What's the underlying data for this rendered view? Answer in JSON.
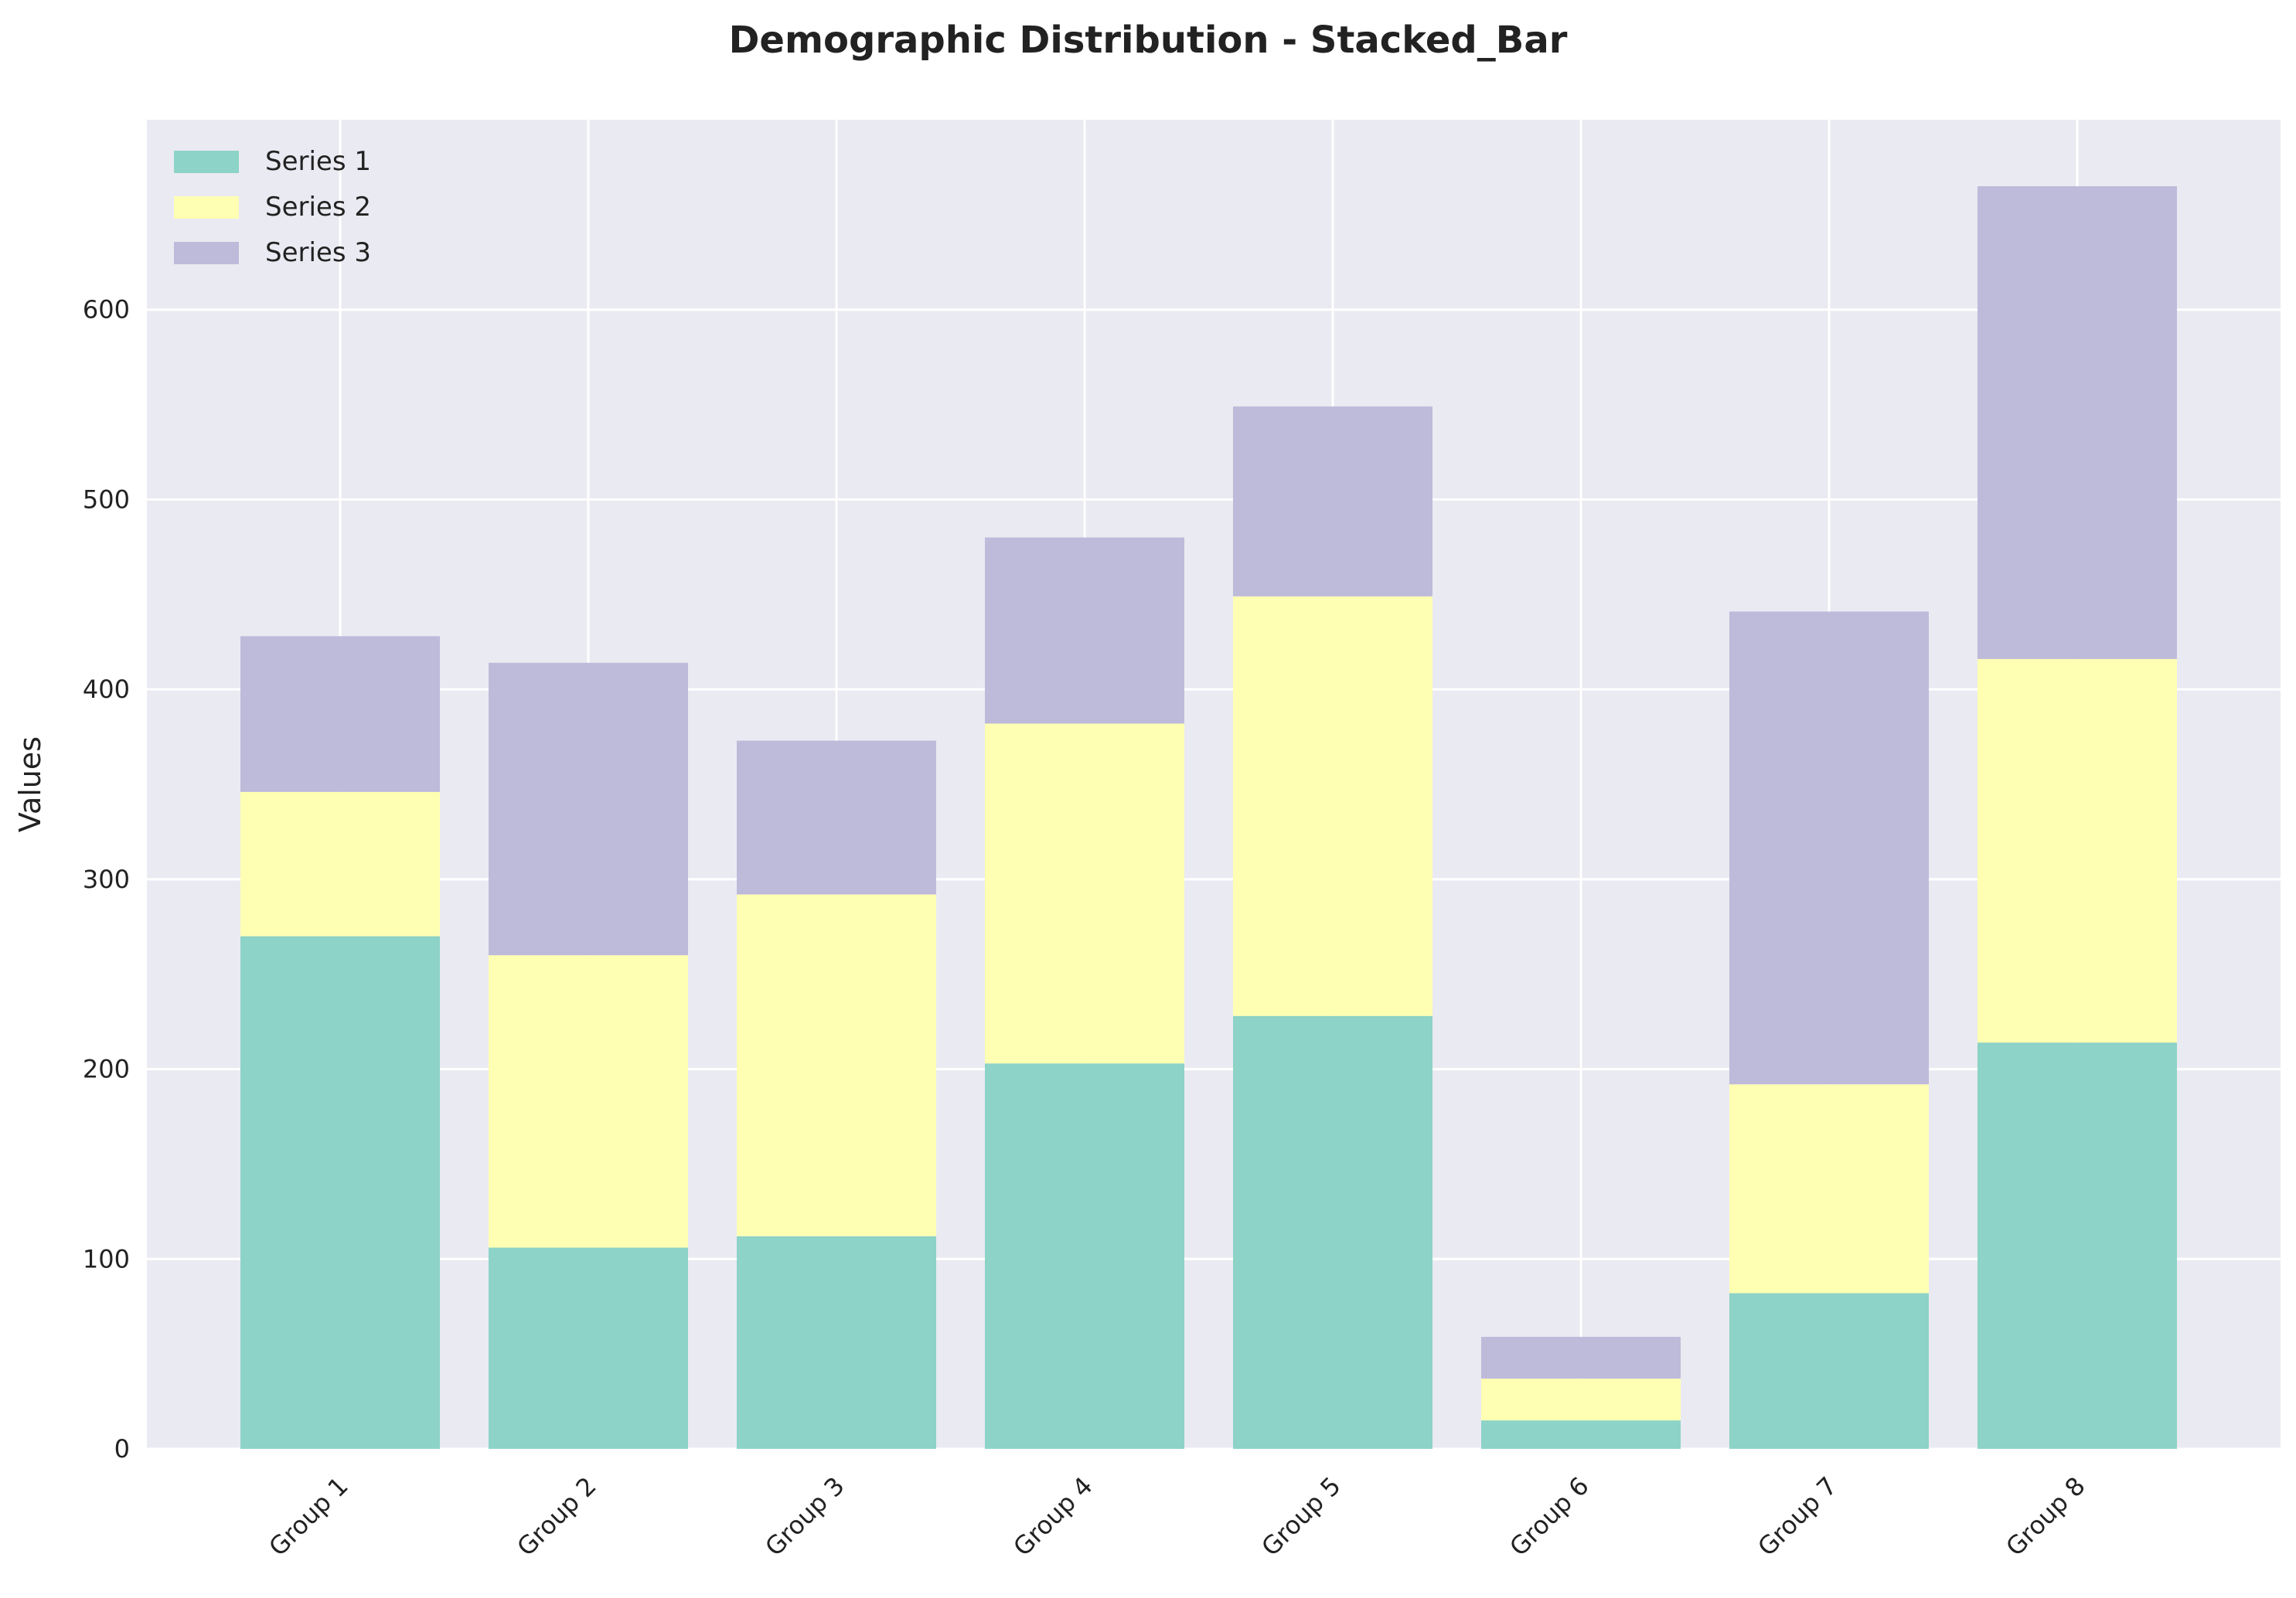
{
  "chart_data": {
    "type": "bar",
    "stacked": true,
    "title": "Demographic Distribution - Stacked_Bar",
    "xlabel": "",
    "ylabel": "Values",
    "categories": [
      "Group 1",
      "Group 2",
      "Group 3",
      "Group 4",
      "Group 5",
      "Group 6",
      "Group 7",
      "Group 8"
    ],
    "series": [
      {
        "name": "Series 1",
        "color": "#8dd3c7",
        "values": [
          270,
          106,
          112,
          203,
          228,
          15,
          82,
          214
        ]
      },
      {
        "name": "Series 2",
        "color": "#ffffb3",
        "values": [
          76,
          154,
          180,
          179,
          221,
          22,
          110,
          202
        ]
      },
      {
        "name": "Series 3",
        "color": "#bebada",
        "values": [
          82,
          154,
          81,
          98,
          100,
          22,
          249,
          249
        ]
      }
    ],
    "ylim": [
      0,
      700
    ],
    "yticks": [
      0,
      100,
      200,
      300,
      400,
      500,
      600
    ],
    "grid": true,
    "legend_position": "top-left",
    "background_color": "#eaeaf2",
    "grid_color": "#ffffff"
  }
}
